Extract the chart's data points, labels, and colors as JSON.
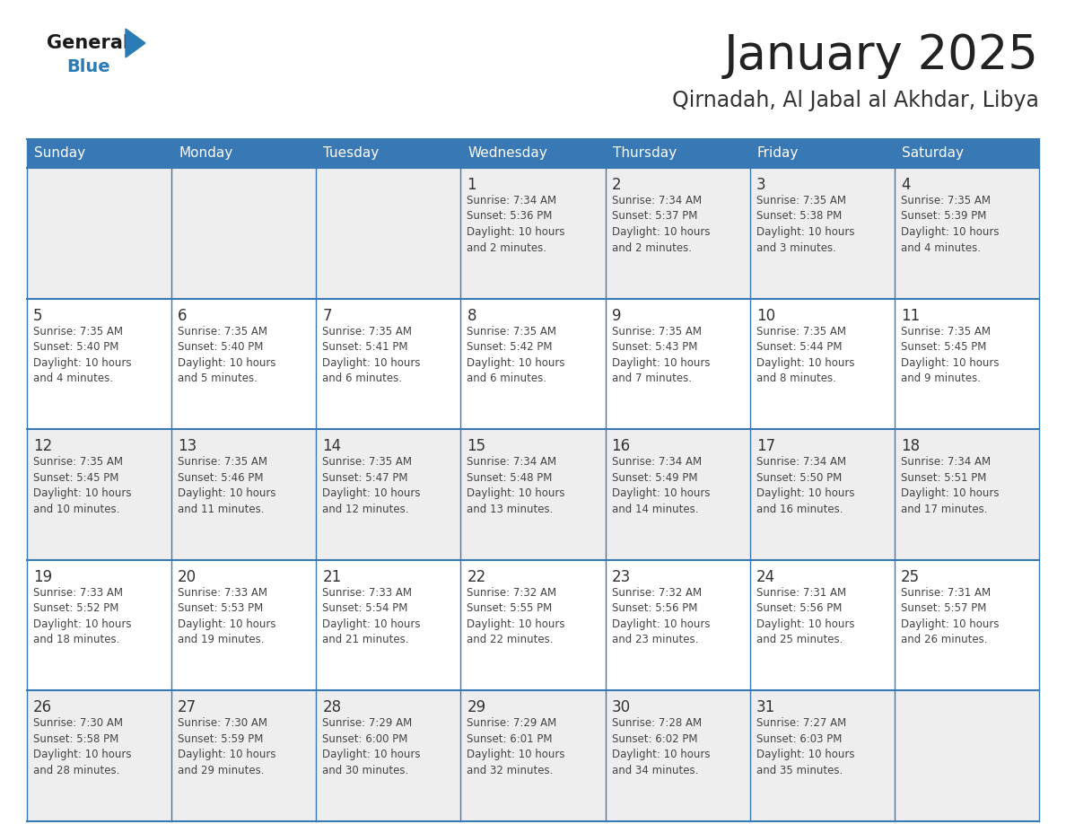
{
  "title": "January 2025",
  "subtitle": "Qirnadah, Al Jabal al Akhdar, Libya",
  "days_of_week": [
    "Sunday",
    "Monday",
    "Tuesday",
    "Wednesday",
    "Thursday",
    "Friday",
    "Saturday"
  ],
  "header_bg": "#3878b4",
  "header_text": "#ffffff",
  "cell_bg_odd": "#eeeeee",
  "cell_bg_even": "#ffffff",
  "grid_line_color": "#3878b4",
  "day_num_color": "#333333",
  "text_color": "#444444",
  "title_color": "#222222",
  "subtitle_color": "#333333",
  "logo_general_color": "#1a1a1a",
  "logo_blue_color": "#2a7ab5",
  "logo_triangle_color": "#2a7ab5",
  "calendar": [
    [
      {
        "day": 0,
        "info": ""
      },
      {
        "day": 0,
        "info": ""
      },
      {
        "day": 0,
        "info": ""
      },
      {
        "day": 1,
        "info": "Sunrise: 7:34 AM\nSunset: 5:36 PM\nDaylight: 10 hours\nand 2 minutes."
      },
      {
        "day": 2,
        "info": "Sunrise: 7:34 AM\nSunset: 5:37 PM\nDaylight: 10 hours\nand 2 minutes."
      },
      {
        "day": 3,
        "info": "Sunrise: 7:35 AM\nSunset: 5:38 PM\nDaylight: 10 hours\nand 3 minutes."
      },
      {
        "day": 4,
        "info": "Sunrise: 7:35 AM\nSunset: 5:39 PM\nDaylight: 10 hours\nand 4 minutes."
      }
    ],
    [
      {
        "day": 5,
        "info": "Sunrise: 7:35 AM\nSunset: 5:40 PM\nDaylight: 10 hours\nand 4 minutes."
      },
      {
        "day": 6,
        "info": "Sunrise: 7:35 AM\nSunset: 5:40 PM\nDaylight: 10 hours\nand 5 minutes."
      },
      {
        "day": 7,
        "info": "Sunrise: 7:35 AM\nSunset: 5:41 PM\nDaylight: 10 hours\nand 6 minutes."
      },
      {
        "day": 8,
        "info": "Sunrise: 7:35 AM\nSunset: 5:42 PM\nDaylight: 10 hours\nand 6 minutes."
      },
      {
        "day": 9,
        "info": "Sunrise: 7:35 AM\nSunset: 5:43 PM\nDaylight: 10 hours\nand 7 minutes."
      },
      {
        "day": 10,
        "info": "Sunrise: 7:35 AM\nSunset: 5:44 PM\nDaylight: 10 hours\nand 8 minutes."
      },
      {
        "day": 11,
        "info": "Sunrise: 7:35 AM\nSunset: 5:45 PM\nDaylight: 10 hours\nand 9 minutes."
      }
    ],
    [
      {
        "day": 12,
        "info": "Sunrise: 7:35 AM\nSunset: 5:45 PM\nDaylight: 10 hours\nand 10 minutes."
      },
      {
        "day": 13,
        "info": "Sunrise: 7:35 AM\nSunset: 5:46 PM\nDaylight: 10 hours\nand 11 minutes."
      },
      {
        "day": 14,
        "info": "Sunrise: 7:35 AM\nSunset: 5:47 PM\nDaylight: 10 hours\nand 12 minutes."
      },
      {
        "day": 15,
        "info": "Sunrise: 7:34 AM\nSunset: 5:48 PM\nDaylight: 10 hours\nand 13 minutes."
      },
      {
        "day": 16,
        "info": "Sunrise: 7:34 AM\nSunset: 5:49 PM\nDaylight: 10 hours\nand 14 minutes."
      },
      {
        "day": 17,
        "info": "Sunrise: 7:34 AM\nSunset: 5:50 PM\nDaylight: 10 hours\nand 16 minutes."
      },
      {
        "day": 18,
        "info": "Sunrise: 7:34 AM\nSunset: 5:51 PM\nDaylight: 10 hours\nand 17 minutes."
      }
    ],
    [
      {
        "day": 19,
        "info": "Sunrise: 7:33 AM\nSunset: 5:52 PM\nDaylight: 10 hours\nand 18 minutes."
      },
      {
        "day": 20,
        "info": "Sunrise: 7:33 AM\nSunset: 5:53 PM\nDaylight: 10 hours\nand 19 minutes."
      },
      {
        "day": 21,
        "info": "Sunrise: 7:33 AM\nSunset: 5:54 PM\nDaylight: 10 hours\nand 21 minutes."
      },
      {
        "day": 22,
        "info": "Sunrise: 7:32 AM\nSunset: 5:55 PM\nDaylight: 10 hours\nand 22 minutes."
      },
      {
        "day": 23,
        "info": "Sunrise: 7:32 AM\nSunset: 5:56 PM\nDaylight: 10 hours\nand 23 minutes."
      },
      {
        "day": 24,
        "info": "Sunrise: 7:31 AM\nSunset: 5:56 PM\nDaylight: 10 hours\nand 25 minutes."
      },
      {
        "day": 25,
        "info": "Sunrise: 7:31 AM\nSunset: 5:57 PM\nDaylight: 10 hours\nand 26 minutes."
      }
    ],
    [
      {
        "day": 26,
        "info": "Sunrise: 7:30 AM\nSunset: 5:58 PM\nDaylight: 10 hours\nand 28 minutes."
      },
      {
        "day": 27,
        "info": "Sunrise: 7:30 AM\nSunset: 5:59 PM\nDaylight: 10 hours\nand 29 minutes."
      },
      {
        "day": 28,
        "info": "Sunrise: 7:29 AM\nSunset: 6:00 PM\nDaylight: 10 hours\nand 30 minutes."
      },
      {
        "day": 29,
        "info": "Sunrise: 7:29 AM\nSunset: 6:01 PM\nDaylight: 10 hours\nand 32 minutes."
      },
      {
        "day": 30,
        "info": "Sunrise: 7:28 AM\nSunset: 6:02 PM\nDaylight: 10 hours\nand 34 minutes."
      },
      {
        "day": 31,
        "info": "Sunrise: 7:27 AM\nSunset: 6:03 PM\nDaylight: 10 hours\nand 35 minutes."
      },
      {
        "day": 0,
        "info": ""
      }
    ]
  ]
}
